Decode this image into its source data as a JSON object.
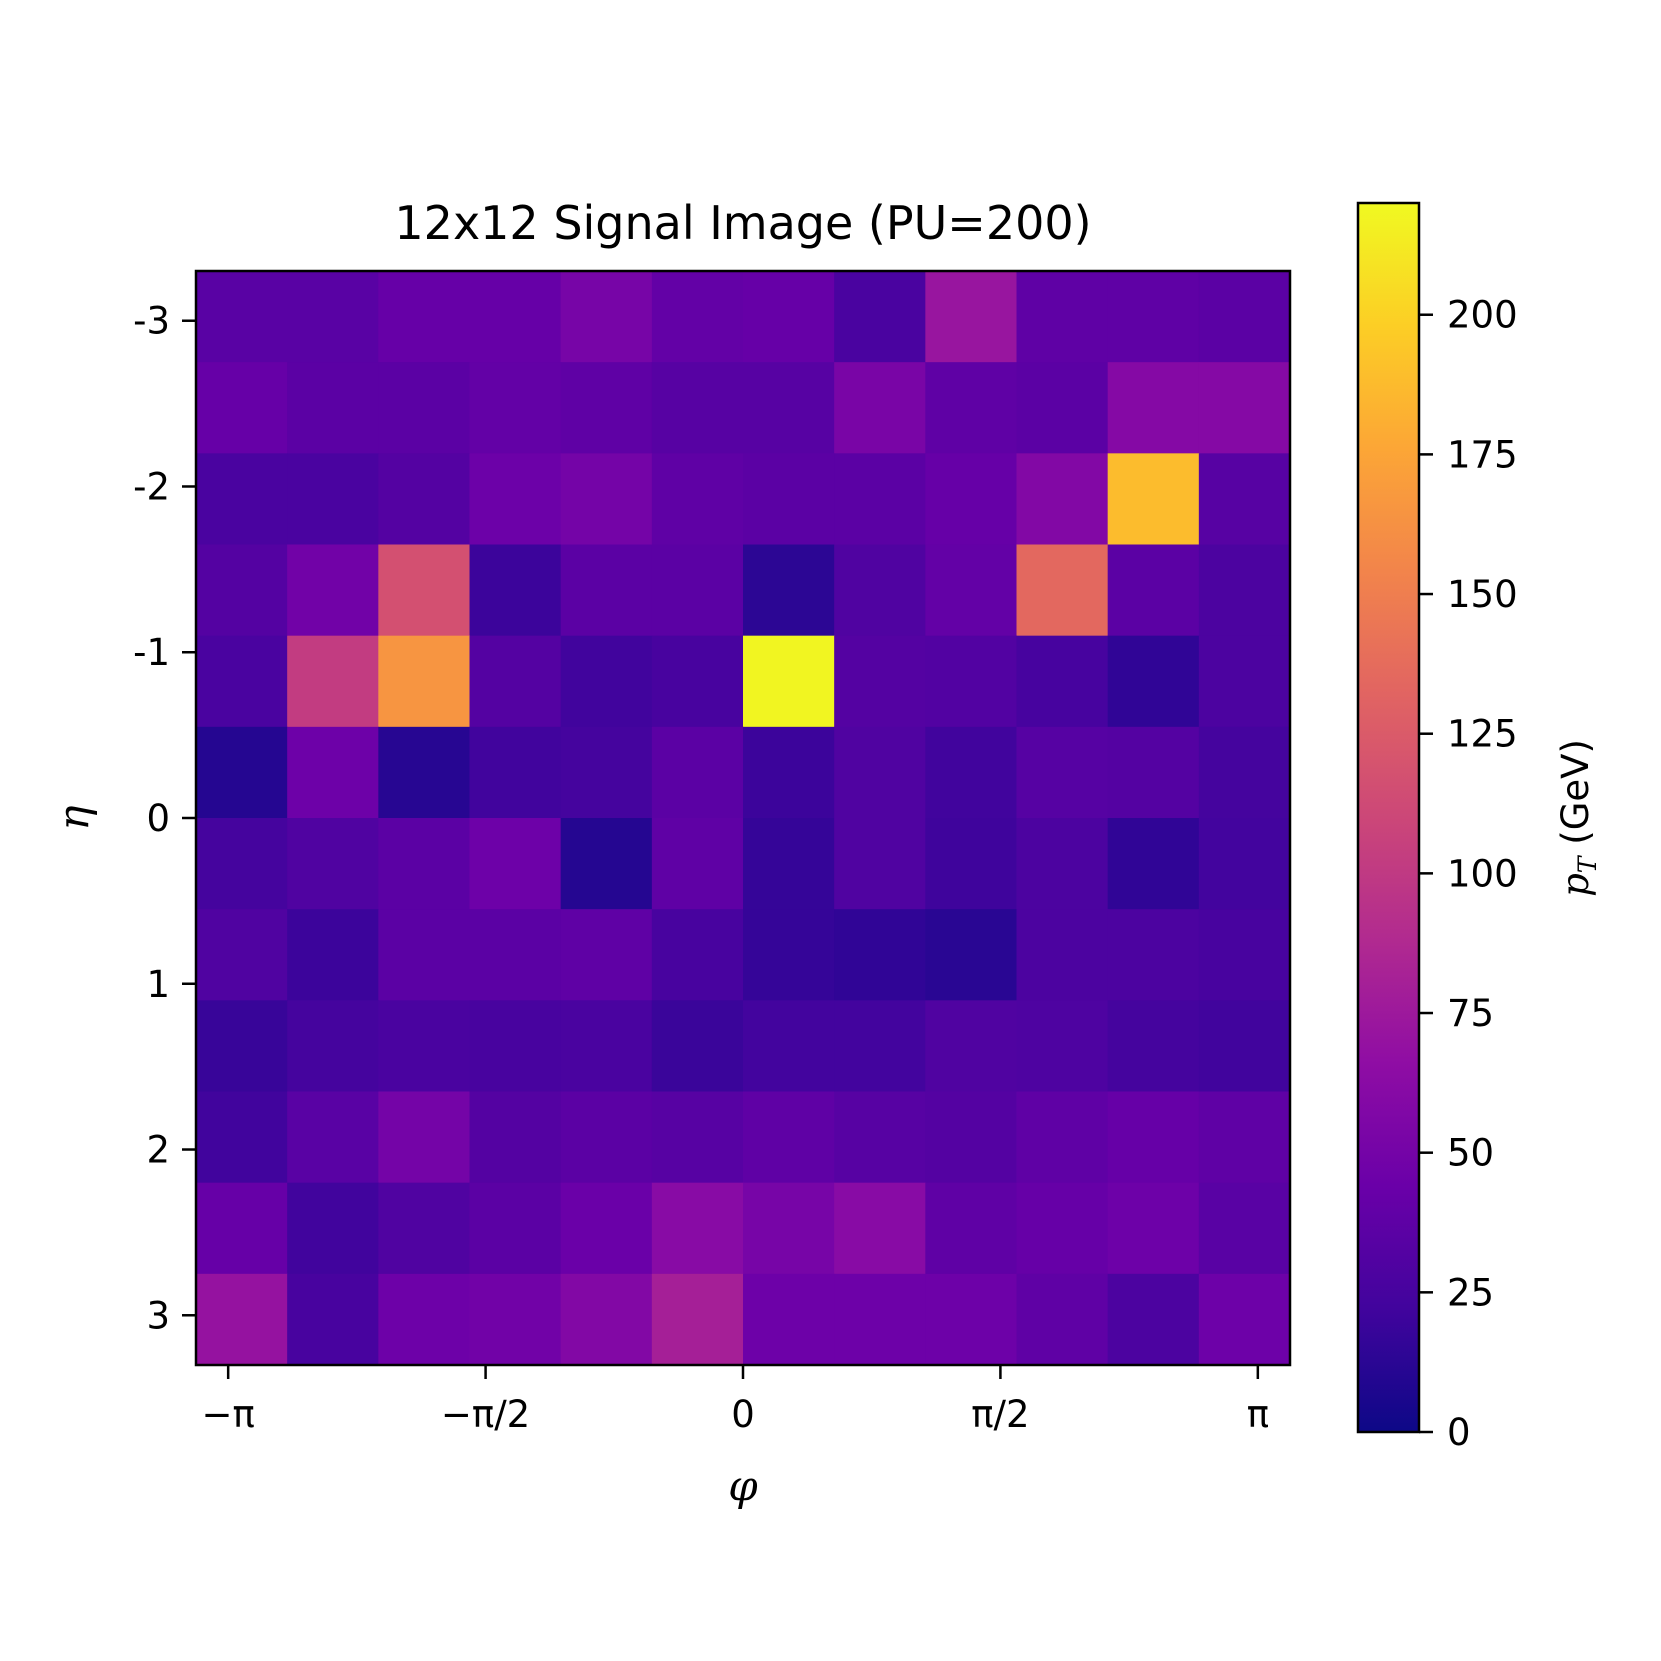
{
  "chart_data": {
    "type": "heatmap",
    "title": "12x12 Signal Image (PU=200)",
    "xlabel": "φ",
    "ylabel": "η",
    "colorbar_label_main": "p",
    "colorbar_label_sub": "T",
    "colorbar_label_unit": " (GeV)",
    "colormap": "plasma",
    "vmin": 0,
    "vmax": 220,
    "x_range": [
      -3.3379,
      3.3379
    ],
    "y_range": [
      -3.3,
      3.3
    ],
    "x_ticks": [
      {
        "value": -3.14159,
        "label": "−π"
      },
      {
        "value": -1.5708,
        "label": "−π/2"
      },
      {
        "value": 0,
        "label": "0"
      },
      {
        "value": 1.5708,
        "label": "π/2"
      },
      {
        "value": 3.14159,
        "label": "π"
      }
    ],
    "y_ticks": [
      {
        "value": -3,
        "label": "-3"
      },
      {
        "value": -2,
        "label": "-2"
      },
      {
        "value": -1,
        "label": "-1"
      },
      {
        "value": 0,
        "label": "0"
      },
      {
        "value": 1,
        "label": "1"
      },
      {
        "value": 2,
        "label": "2"
      },
      {
        "value": 3,
        "label": "3"
      }
    ],
    "colorbar_ticks": [
      0,
      25,
      50,
      75,
      100,
      125,
      150,
      175,
      200
    ],
    "rows": 12,
    "cols": 12,
    "values": [
      [
        35,
        35,
        42,
        42,
        52,
        40,
        42,
        27,
        72,
        38,
        38,
        36
      ],
      [
        42,
        36,
        36,
        40,
        38,
        34,
        34,
        53,
        38,
        36,
        60,
        60
      ],
      [
        27,
        27,
        32,
        45,
        50,
        38,
        36,
        36,
        42,
        58,
        188,
        34
      ],
      [
        32,
        48,
        117,
        20,
        36,
        36,
        13,
        30,
        40,
        135,
        36,
        28
      ],
      [
        27,
        102,
        165,
        32,
        22,
        26,
        218,
        32,
        31,
        25,
        15,
        28
      ],
      [
        10,
        46,
        11,
        22,
        24,
        36,
        20,
        30,
        22,
        33,
        32,
        24
      ],
      [
        24,
        30,
        36,
        46,
        10,
        38,
        17,
        30,
        21,
        28,
        15,
        23
      ],
      [
        30,
        20,
        36,
        36,
        38,
        26,
        17,
        15,
        12,
        28,
        28,
        26
      ],
      [
        18,
        24,
        27,
        26,
        27,
        19,
        23,
        23,
        30,
        29,
        24,
        22
      ],
      [
        22,
        35,
        50,
        32,
        36,
        34,
        38,
        34,
        32,
        38,
        42,
        38
      ],
      [
        42,
        22,
        30,
        36,
        44,
        62,
        52,
        62,
        38,
        42,
        46,
        35
      ],
      [
        70,
        26,
        46,
        48,
        58,
        80,
        46,
        46,
        46,
        38,
        28,
        46
      ]
    ]
  }
}
